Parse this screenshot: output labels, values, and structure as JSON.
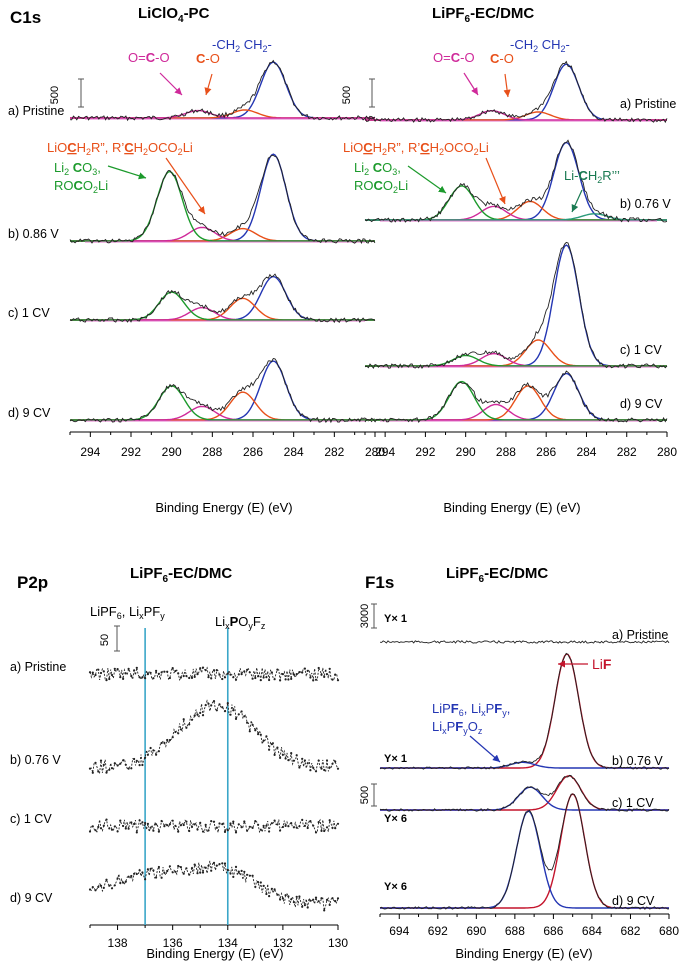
{
  "figure": {
    "panel_top_left_label": "C1s",
    "panel_bottom_left_label": "P2p",
    "panel_bottom_right_label": "F1s"
  },
  "chart_data": [
    {
      "id": "c1s_liclo4_pc",
      "type": "line",
      "title": "LiClO4-PC",
      "xlabel": "Binding Energy (E) (eV)",
      "xlim": [
        295,
        280
      ],
      "x_ticks": [
        294,
        292,
        290,
        288,
        286,
        284,
        282,
        280
      ],
      "scale_bar_label": "500",
      "annotations": [
        "O=C-O",
        "C-O",
        "-CH2 CH2-",
        "LiOCH2R\", R'CH2OCO2Li",
        "Li2 CO3,",
        "ROCO2Li"
      ],
      "traces": [
        {
          "label": "a) Pristine",
          "peaks": [
            {
              "center": 285.0,
              "height": 0.9,
              "color": "#2436b3"
            },
            {
              "center": 286.4,
              "height": 0.13,
              "color": "#e8501a"
            },
            {
              "center": 288.7,
              "height": 0.12,
              "color": "#cf2a9a"
            }
          ]
        },
        {
          "label": "b) 0.86 V",
          "peaks": [
            {
              "center": 285.0,
              "height": 1.4,
              "color": "#2436b3"
            },
            {
              "center": 286.5,
              "height": 0.2,
              "color": "#e8501a"
            },
            {
              "center": 288.5,
              "height": 0.22,
              "color": "#cf2a9a"
            },
            {
              "center": 290.1,
              "height": 1.12,
              "color": "#1c9a2c"
            }
          ]
        },
        {
          "label": "c) 1 CV",
          "peaks": [
            {
              "center": 285.0,
              "height": 0.7,
              "color": "#2436b3"
            },
            {
              "center": 286.5,
              "height": 0.35,
              "color": "#e8501a"
            },
            {
              "center": 288.5,
              "height": 0.2,
              "color": "#cf2a9a"
            },
            {
              "center": 290.0,
              "height": 0.45,
              "color": "#1c9a2c"
            }
          ]
        },
        {
          "label": "d) 9 CV",
          "peaks": [
            {
              "center": 285.0,
              "height": 0.95,
              "color": "#2436b3"
            },
            {
              "center": 286.5,
              "height": 0.45,
              "color": "#e8501a"
            },
            {
              "center": 288.5,
              "height": 0.22,
              "color": "#cf2a9a"
            },
            {
              "center": 290.0,
              "height": 0.55,
              "color": "#1c9a2c"
            }
          ]
        }
      ]
    },
    {
      "id": "c1s_lipf6_ecdmc",
      "type": "line",
      "title": "LiPF6-EC/DMC",
      "xlabel": "Binding Energy (E) (eV)",
      "xlim": [
        295,
        280
      ],
      "x_ticks": [
        294,
        292,
        290,
        288,
        286,
        284,
        282,
        280
      ],
      "scale_bar_label": "500",
      "annotations": [
        "O=C-O",
        "C-O",
        "-CH2 CH2-",
        "LiOCH2R\", R'CH2OCO2Li",
        "Li2 CO3,",
        "ROCO2Li",
        "Li-CH2R'''"
      ],
      "traces": [
        {
          "label": "a) Pristine",
          "peaks": [
            {
              "center": 285.0,
              "height": 0.9,
              "color": "#2436b3"
            },
            {
              "center": 286.4,
              "height": 0.13,
              "color": "#e8501a"
            },
            {
              "center": 288.7,
              "height": 0.15,
              "color": "#cf2a9a"
            }
          ]
        },
        {
          "label": "b) 0.76 V",
          "peaks": [
            {
              "center": 285.0,
              "height": 1.25,
              "color": "#2436b3"
            },
            {
              "center": 286.8,
              "height": 0.3,
              "color": "#e8501a"
            },
            {
              "center": 288.6,
              "height": 0.22,
              "color": "#cf2a9a"
            },
            {
              "center": 290.2,
              "height": 0.55,
              "color": "#1c9a2c"
            },
            {
              "center": 283.6,
              "height": 0.1,
              "color": "#2a9a7a"
            }
          ]
        },
        {
          "label": "c) 1 CV",
          "peaks": [
            {
              "center": 285.0,
              "height": 1.95,
              "color": "#2436b3"
            },
            {
              "center": 286.4,
              "height": 0.42,
              "color": "#e8501a"
            },
            {
              "center": 288.6,
              "height": 0.2,
              "color": "#cf2a9a"
            },
            {
              "center": 290.0,
              "height": 0.17,
              "color": "#1c9a2c"
            }
          ]
        },
        {
          "label": "d) 9 CV",
          "peaks": [
            {
              "center": 285.0,
              "height": 0.75,
              "color": "#2436b3"
            },
            {
              "center": 286.9,
              "height": 0.55,
              "color": "#e8501a"
            },
            {
              "center": 288.5,
              "height": 0.25,
              "color": "#cf2a9a"
            },
            {
              "center": 290.2,
              "height": 0.62,
              "color": "#1c9a2c"
            }
          ]
        }
      ]
    },
    {
      "id": "p2p_lipf6_ecdmc",
      "type": "line",
      "title": "LiPF6-EC/DMC",
      "xlabel": "Binding Energy (E) (eV)",
      "xlim": [
        139,
        130
      ],
      "x_ticks": [
        138,
        136,
        134,
        132,
        130
      ],
      "scale_bar_label": "50",
      "vertical_lines": [
        {
          "x": 137.0,
          "label": "LiPF6, LixPFy"
        },
        {
          "x": 134.0,
          "label": "LixPOyFz"
        }
      ],
      "traces": [
        {
          "label": "a) Pristine",
          "peaks": []
        },
        {
          "label": "b) 0.76 V",
          "peaks": [
            {
              "center": 134.4,
              "height": 1.0
            }
          ]
        },
        {
          "label": "c) 1 CV",
          "peaks": []
        },
        {
          "label": "d) 9 CV",
          "peaks": [
            {
              "center": 137.2,
              "height": 0.45
            },
            {
              "center": 134.3,
              "height": 0.55
            }
          ]
        }
      ]
    },
    {
      "id": "f1s_lipf6_ecdmc",
      "type": "line",
      "title": "LiPF6-EC/DMC",
      "xlabel": "Binding Energy (E) (eV)",
      "xlim": [
        695,
        680
      ],
      "x_ticks": [
        694,
        692,
        690,
        688,
        686,
        684,
        682,
        680
      ],
      "scale_bars": [
        "3000",
        "500"
      ],
      "annotations": [
        "LiF",
        "LiPF6, LixPFy,",
        "LixPFyOz"
      ],
      "traces": [
        {
          "label": "a) Pristine",
          "multiplier": "Y× 1",
          "peaks": []
        },
        {
          "label": "b) 0.76 V",
          "multiplier": "Y× 1",
          "peaks": [
            {
              "center": 685.3,
              "height": 1.0,
              "color": "#c4142c"
            },
            {
              "center": 687.6,
              "height": 0.05,
              "color": "#2436b3"
            }
          ]
        },
        {
          "label": "c) 1 CV",
          "multiplier": "Y× 6",
          "peaks": [
            {
              "center": 685.2,
              "height": 0.3,
              "color": "#c4142c"
            },
            {
              "center": 687.2,
              "height": 0.2,
              "color": "#2436b3"
            }
          ]
        },
        {
          "label": "d) 9 CV",
          "multiplier": "Y× 6",
          "peaks": [
            {
              "center": 685.0,
              "height": 1.0,
              "color": "#c4142c"
            },
            {
              "center": 687.3,
              "height": 0.85,
              "color": "#2436b3"
            }
          ]
        }
      ]
    }
  ]
}
